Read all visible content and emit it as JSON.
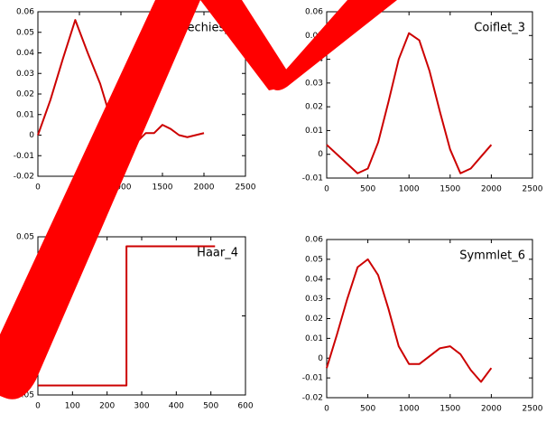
{
  "chart_data": [
    {
      "type": "line",
      "title": "Daubechies_6",
      "color": "#cc0000",
      "x": [
        0,
        150,
        300,
        450,
        600,
        750,
        900,
        1000,
        1100,
        1200,
        1300,
        1400,
        1500,
        1600,
        1700,
        1800,
        1900,
        2000
      ],
      "values": [
        0.0,
        0.017,
        0.037,
        0.056,
        0.04,
        0.025,
        0.005,
        -0.015,
        -0.01,
        -0.003,
        0.001,
        0.001,
        0.005,
        0.003,
        0.0,
        -0.001,
        0.0,
        0.001
      ],
      "xlim": [
        0,
        2500
      ],
      "xticks": [
        0,
        500,
        1000,
        1500,
        2000,
        2500
      ],
      "ylim": [
        -0.02,
        0.06
      ],
      "yticks": [
        -0.02,
        -0.01,
        0,
        0.01,
        0.02,
        0.03,
        0.04,
        0.05,
        0.06
      ]
    },
    {
      "type": "line",
      "title": "Coiflet_3",
      "color": "#cc0000",
      "x": [
        0,
        125,
        250,
        375,
        500,
        625,
        750,
        875,
        1000,
        1125,
        1250,
        1375,
        1500,
        1625,
        1750,
        1875,
        2000
      ],
      "values": [
        0.004,
        0.0,
        -0.004,
        -0.008,
        -0.006,
        0.005,
        0.022,
        0.04,
        0.051,
        0.048,
        0.035,
        0.018,
        0.002,
        -0.008,
        -0.006,
        -0.001,
        0.004
      ],
      "xlim": [
        0,
        2500
      ],
      "xticks": [
        0,
        500,
        1000,
        1500,
        2000,
        2500
      ],
      "ylim": [
        -0.01,
        0.06
      ],
      "yticks": [
        -0.01,
        0,
        0.01,
        0.02,
        0.03,
        0.04,
        0.05,
        0.06
      ]
    },
    {
      "type": "line",
      "title": "Haar_4",
      "color": "#cc0000",
      "x": [
        0,
        256,
        256,
        512
      ],
      "values": [
        -0.044,
        -0.044,
        0.044,
        0.044
      ],
      "xlim": [
        0,
        600
      ],
      "xticks": [
        0,
        100,
        200,
        300,
        400,
        500,
        600
      ],
      "ylim": [
        -0.05,
        0.05
      ],
      "yticks": [
        -0.05,
        0,
        0.05
      ]
    },
    {
      "type": "line",
      "title": "Symmlet_6",
      "color": "#cc0000",
      "x": [
        0,
        125,
        250,
        375,
        500,
        625,
        750,
        875,
        1000,
        1125,
        1250,
        1375,
        1500,
        1625,
        1750,
        1875,
        2000
      ],
      "values": [
        -0.005,
        0.012,
        0.03,
        0.046,
        0.05,
        0.042,
        0.025,
        0.006,
        -0.003,
        -0.003,
        0.001,
        0.005,
        0.006,
        0.002,
        -0.006,
        -0.012,
        -0.005
      ],
      "xlim": [
        0,
        2500
      ],
      "xticks": [
        0,
        500,
        1000,
        1500,
        2000,
        2500
      ],
      "ylim": [
        -0.02,
        0.06
      ],
      "yticks": [
        -0.02,
        -0.01,
        0,
        0.01,
        0.02,
        0.03,
        0.04,
        0.05,
        0.06
      ]
    }
  ]
}
